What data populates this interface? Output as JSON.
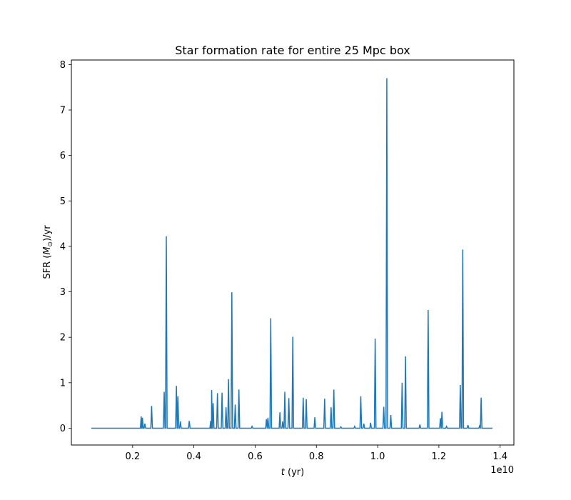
{
  "chart_data": {
    "type": "line",
    "title": "Star formation rate for entire 25 Mpc box",
    "xlabel_var": "t",
    "xlabel_unit": " (yr)",
    "ylabel_prefix": "SFR (",
    "ylabel_var": "M",
    "ylabel_sub": "⊙",
    "ylabel_suffix": ")/yr",
    "x_offset_label": "1e10",
    "x_scale": 10000000000,
    "xlim": [
      0.0,
      1.445
    ],
    "ylim": [
      -0.37,
      8.1
    ],
    "x_ticks": [
      0.2,
      0.4,
      0.6,
      0.8,
      1.0,
      1.2,
      1.4
    ],
    "x_tick_labels": [
      "0.2",
      "0.4",
      "0.6",
      "0.8",
      "1.0",
      "1.2",
      "1.4"
    ],
    "y_ticks": [
      0,
      1,
      2,
      3,
      4,
      5,
      6,
      7,
      8
    ],
    "y_tick_labels": [
      "0",
      "1",
      "2",
      "3",
      "4",
      "5",
      "6",
      "7",
      "8"
    ],
    "grid": false,
    "legend": "none",
    "line_color": "#1f77b4",
    "x_range": [
      0.065,
      1.375
    ],
    "series": [
      {
        "peaks": [
          [
            0.228,
            0.26
          ],
          [
            0.232,
            0.23
          ],
          [
            0.24,
            0.1
          ],
          [
            0.262,
            0.49
          ],
          [
            0.303,
            0.8
          ],
          [
            0.31,
            4.22
          ],
          [
            0.343,
            0.93
          ],
          [
            0.348,
            0.7
          ],
          [
            0.356,
            0.15
          ],
          [
            0.385,
            0.16
          ],
          [
            0.455,
            0.16
          ],
          [
            0.458,
            0.84
          ],
          [
            0.463,
            0.55
          ],
          [
            0.477,
            0.77
          ],
          [
            0.492,
            0.78
          ],
          [
            0.505,
            0.46
          ],
          [
            0.513,
            1.08
          ],
          [
            0.524,
            2.99
          ],
          [
            0.535,
            0.52
          ],
          [
            0.547,
            0.85
          ],
          [
            0.59,
            0.04
          ],
          [
            0.637,
            0.2
          ],
          [
            0.642,
            0.23
          ],
          [
            0.651,
            2.42
          ],
          [
            0.681,
            0.35
          ],
          [
            0.69,
            0.15
          ],
          [
            0.697,
            0.8
          ],
          [
            0.71,
            0.66
          ],
          [
            0.723,
            2.01
          ],
          [
            0.757,
            0.67
          ],
          [
            0.767,
            0.64
          ],
          [
            0.795,
            0.24
          ],
          [
            0.827,
            0.65
          ],
          [
            0.848,
            0.46
          ],
          [
            0.857,
            0.85
          ],
          [
            0.88,
            0.03
          ],
          [
            0.925,
            0.04
          ],
          [
            0.945,
            0.7
          ],
          [
            0.955,
            0.1
          ],
          [
            0.977,
            0.12
          ],
          [
            0.992,
            1.97
          ],
          [
            1.02,
            0.47
          ],
          [
            1.03,
            7.7
          ],
          [
            1.043,
            0.29
          ],
          [
            1.08,
            1.0
          ],
          [
            1.091,
            1.58
          ],
          [
            1.138,
            0.08
          ],
          [
            1.165,
            2.6
          ],
          [
            1.205,
            0.22
          ],
          [
            1.21,
            0.36
          ],
          [
            1.225,
            0.04
          ],
          [
            1.27,
            0.95
          ],
          [
            1.278,
            3.93
          ],
          [
            1.295,
            0.07
          ],
          [
            1.333,
            0.05
          ],
          [
            1.338,
            0.67
          ]
        ]
      }
    ]
  }
}
